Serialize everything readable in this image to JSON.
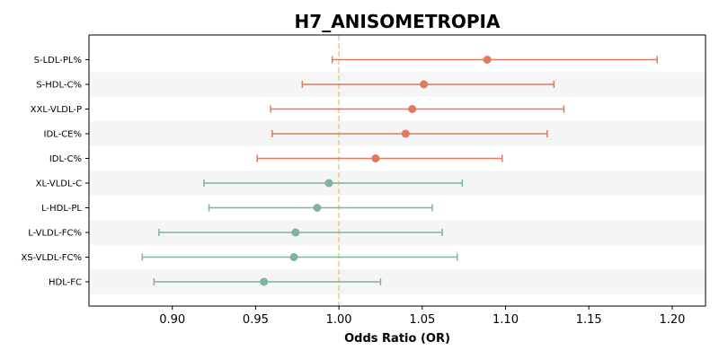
{
  "chart_data": {
    "type": "forest",
    "title": "H7_ANISOMETROPIA",
    "xlabel": "Odds Ratio (OR)",
    "xlim": [
      0.85,
      1.22
    ],
    "xticks": [
      0.9,
      0.95,
      1.0,
      1.05,
      1.1,
      1.15,
      1.2
    ],
    "xtick_labels": [
      "0.90",
      "0.95",
      "1.00",
      "1.05",
      "1.10",
      "1.15",
      "1.20"
    ],
    "reference_line": 1.0,
    "colors": {
      "above": "#e07a5f",
      "below": "#81b29a",
      "reference": "#f2c48d",
      "stripe": "#f5f5f5"
    },
    "rows": [
      {
        "label": "S-LDL-PL%",
        "or": 1.089,
        "lower": 0.996,
        "upper": 1.191
      },
      {
        "label": "S-HDL-C%",
        "or": 1.051,
        "lower": 0.978,
        "upper": 1.129
      },
      {
        "label": "XXL-VLDL-P",
        "or": 1.044,
        "lower": 0.959,
        "upper": 1.135
      },
      {
        "label": "IDL-CE%",
        "or": 1.04,
        "lower": 0.96,
        "upper": 1.125
      },
      {
        "label": "IDL-C%",
        "or": 1.022,
        "lower": 0.951,
        "upper": 1.098
      },
      {
        "label": "XL-VLDL-C",
        "or": 0.994,
        "lower": 0.919,
        "upper": 1.074
      },
      {
        "label": "L-HDL-PL",
        "or": 0.987,
        "lower": 0.922,
        "upper": 1.056
      },
      {
        "label": "L-VLDL-FC%",
        "or": 0.974,
        "lower": 0.892,
        "upper": 1.062
      },
      {
        "label": "XS-VLDL-FC%",
        "or": 0.973,
        "lower": 0.882,
        "upper": 1.071
      },
      {
        "label": "HDL-FC",
        "or": 0.955,
        "lower": 0.889,
        "upper": 1.025
      }
    ]
  }
}
